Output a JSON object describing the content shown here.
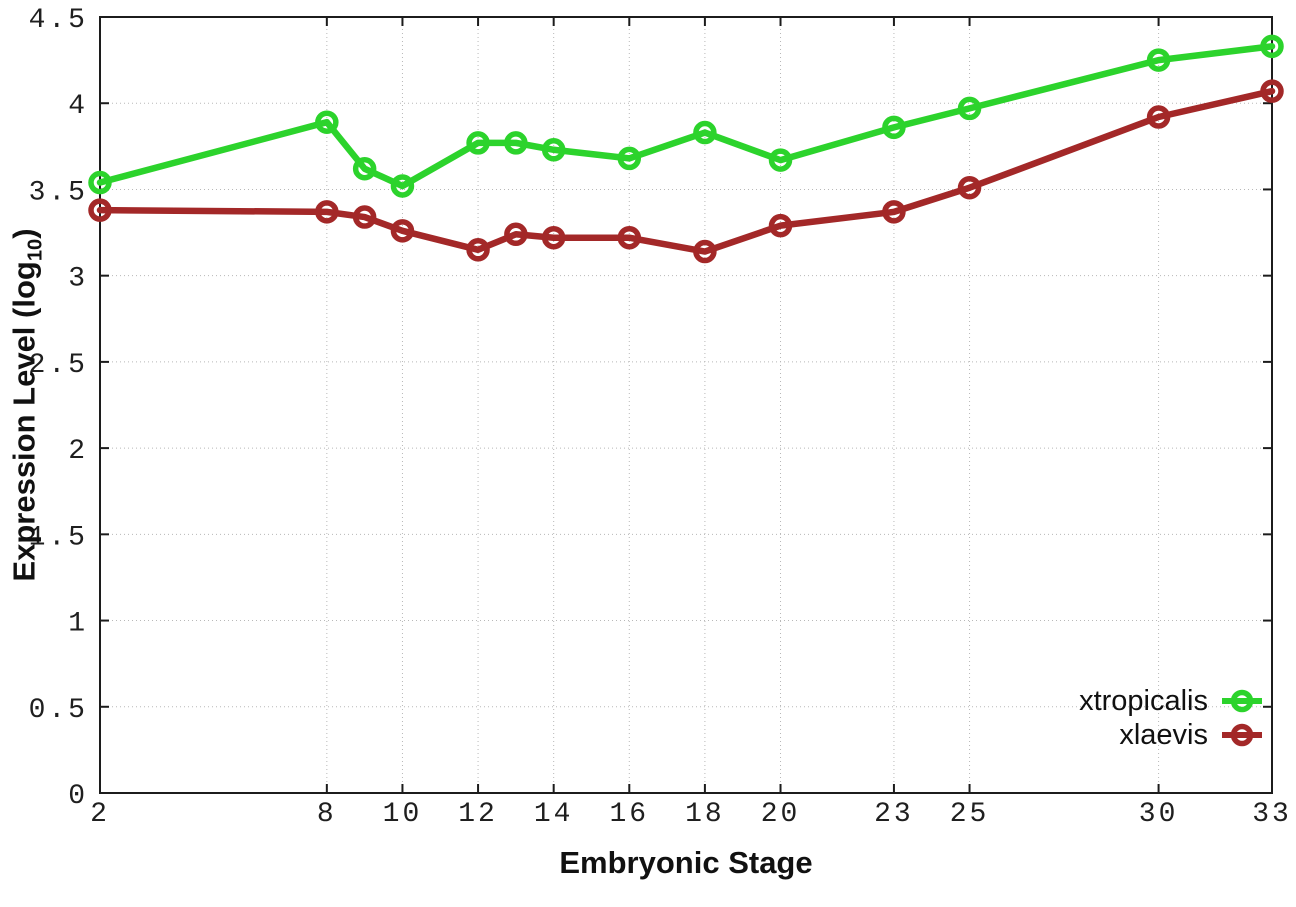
{
  "figure": {
    "background": "#ffffff",
    "border_color": "#1c1c1c",
    "grid_color": "#b8b8b8"
  },
  "chart_data": {
    "type": "line",
    "title": "",
    "xlabel": "Embryonic Stage",
    "ylabel": "Expression Level (log10)",
    "ylabel_parts": {
      "main": "Expression Level (log",
      "sub": "10",
      "end": ")"
    },
    "xlim": [
      2,
      33
    ],
    "ylim": [
      0,
      4.5
    ],
    "grid": true,
    "legend_position": "inside-bottom-right",
    "x": [
      2,
      8,
      9,
      10,
      12,
      13,
      14,
      16,
      18,
      20,
      23,
      25,
      30,
      33
    ],
    "xticks": [
      2,
      8,
      10,
      12,
      14,
      16,
      18,
      20,
      23,
      25,
      30,
      33
    ],
    "yticks": [
      0,
      0.5,
      1,
      1.5,
      2,
      2.5,
      3,
      3.5,
      4,
      4.5
    ],
    "series": [
      {
        "name": "xtropicalis",
        "color": "#2cd32c",
        "marker": "open-circle",
        "values": [
          3.54,
          3.89,
          3.62,
          3.52,
          3.77,
          3.77,
          3.73,
          3.68,
          3.83,
          3.67,
          3.86,
          3.97,
          4.25,
          4.33
        ]
      },
      {
        "name": "xlaevis",
        "color": "#a32828",
        "marker": "open-circle",
        "values": [
          3.38,
          3.37,
          3.34,
          3.26,
          3.15,
          3.24,
          3.22,
          3.22,
          3.14,
          3.29,
          3.37,
          3.51,
          3.92,
          4.07
        ]
      }
    ]
  }
}
